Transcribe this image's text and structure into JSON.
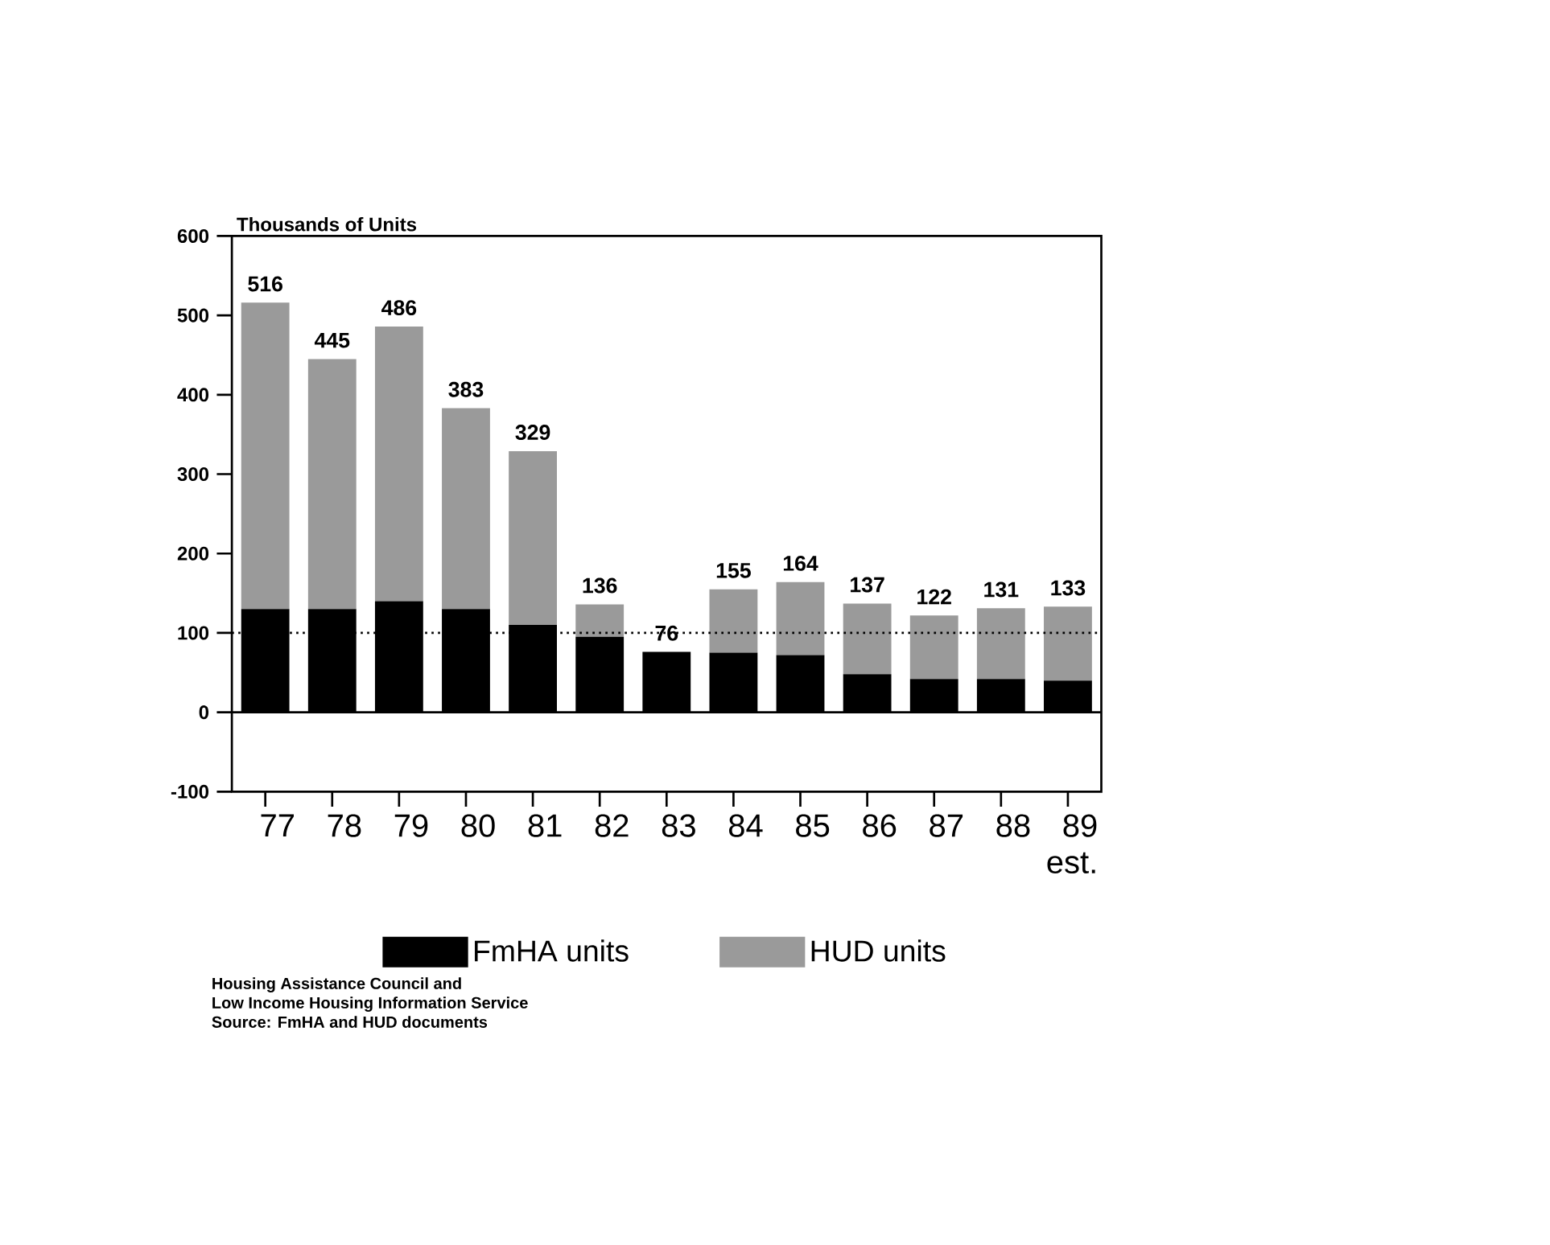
{
  "chart_data": {
    "type": "bar",
    "stacked": true,
    "ylabel": "Thousands of Units",
    "categories": [
      "77",
      "78",
      "79",
      "80",
      "81",
      "82",
      "83",
      "84",
      "85",
      "86",
      "87",
      "88",
      "89 est."
    ],
    "series": [
      {
        "name": "FmHA units",
        "color": "#000000",
        "values": [
          130,
          130,
          140,
          130,
          110,
          95,
          76,
          75,
          72,
          48,
          42,
          42,
          40
        ]
      },
      {
        "name": "HUD units",
        "color": "#9a9a9a",
        "values": [
          386,
          315,
          346,
          253,
          219,
          41,
          0,
          80,
          92,
          89,
          80,
          89,
          93
        ]
      }
    ],
    "totals": [
      "516",
      "445",
      "486",
      "383",
      "329",
      "136",
      "76",
      "155",
      "164",
      "137",
      "122",
      "131",
      "133"
    ],
    "ylim": [
      -100,
      600
    ],
    "yticks": [
      -100,
      0,
      100,
      200,
      300,
      400,
      500,
      600
    ],
    "ref_lines": [
      {
        "axis": "y",
        "value": 100,
        "line_style": "dotted"
      }
    ],
    "legend": "bottom",
    "annotations": [
      "Housing Assistance Council and",
      "Low Income Housing Information Service",
      "Source: FmHA and HUD documents"
    ]
  }
}
